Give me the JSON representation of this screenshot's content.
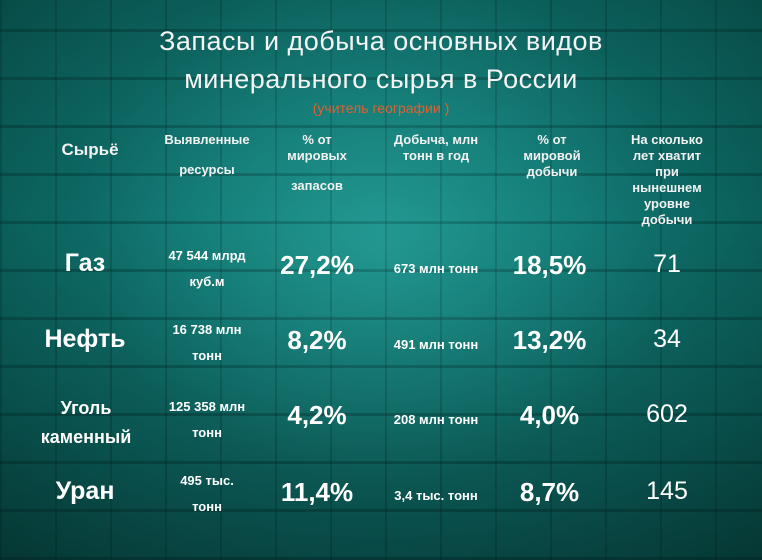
{
  "title": {
    "line1": "Запасы и добыча основных видов",
    "line2": "минерального сырья в России",
    "credit": "(учитель географии )"
  },
  "headers": {
    "raw": "Сырьё",
    "resources_l1": "Выявленные",
    "resources_l2": "ресурсы",
    "reserves_l1": "% от",
    "reserves_l2": "мировых",
    "reserves_l3": "запасов",
    "production_l1": "Добыча, млн",
    "production_l2": "тонн в год",
    "share_l1": "% от",
    "share_l2": "мировой",
    "share_l3": "добычи",
    "years_l1": "На сколько",
    "years_l2": "лет хватит",
    "years_l3": "при",
    "years_l4": "нынешнем",
    "years_l5": "уровне",
    "years_l6": "добычи"
  },
  "rows": [
    {
      "name": "Газ",
      "res1": "47 544 млрд",
      "res2": "куб.м",
      "pct_reserves": "27,2%",
      "production": "673 млн тонн",
      "pct_production": "18,5%",
      "years": "71"
    },
    {
      "name": "Нефть",
      "res1": "16 738 млн",
      "res2": "тонн",
      "pct_reserves": "8,2%",
      "production": "491 млн тонн",
      "pct_production": "13,2%",
      "years": "34"
    },
    {
      "name1": "Уголь",
      "name2": "каменный",
      "res1": "125 358 млн",
      "res2": "тонн",
      "pct_reserves": "4,2%",
      "production": "208 млн тонн",
      "pct_production": "4,0%",
      "years": "602"
    },
    {
      "name": "Уран",
      "res1": "495 тыс.",
      "res2": "тонн",
      "pct_reserves": "11,4%",
      "production": "3,4 тыс. тонн",
      "pct_production": "8,7%",
      "years": "145"
    }
  ],
  "colors": {
    "background": "#117671",
    "credit": "#e0602e",
    "text": "#ffffff"
  }
}
